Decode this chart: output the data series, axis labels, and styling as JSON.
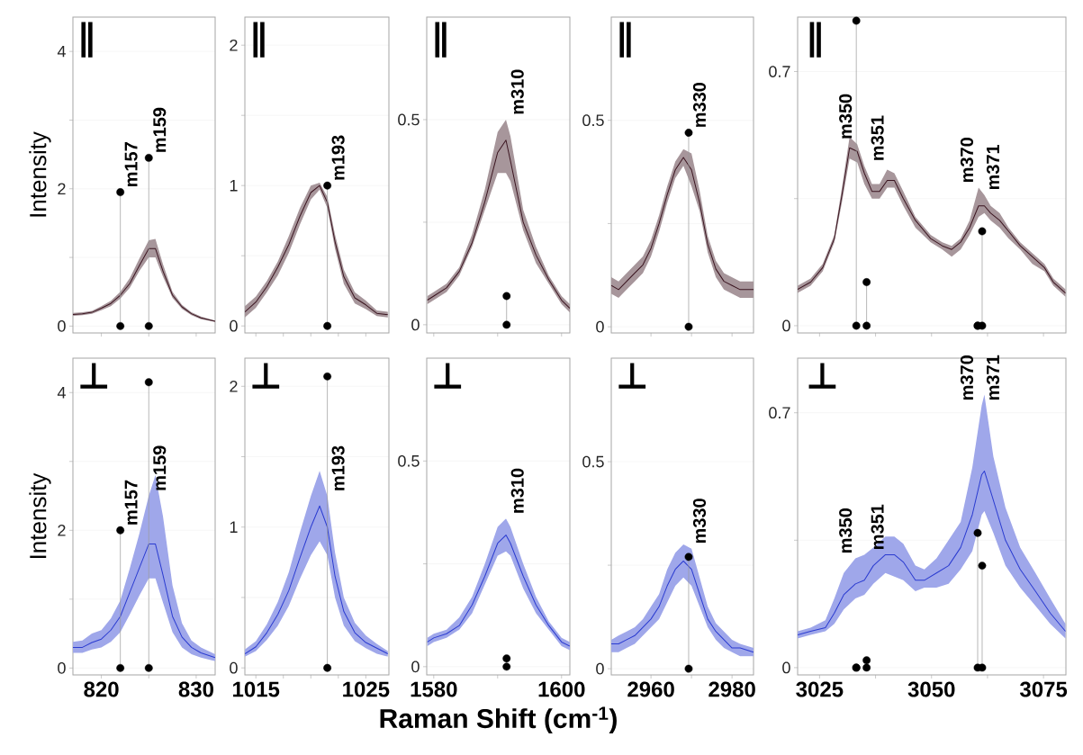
{
  "chart_data": [
    {
      "type": "line",
      "ylabel": "Intensity",
      "xlim": [
        817,
        832
      ],
      "ylim": [
        -0.1,
        4.5
      ],
      "xticks": [
        820,
        {
          "value": 825,
          "label": null
        },
        830
      ],
      "yticks": [
        0,
        {
          "value": 1,
          "label": null
        },
        2,
        {
          "value": 3,
          "label": null
        },
        4
      ],
      "grid": "y",
      "tick_labels": "y",
      "annotations": [
        "∥",
        "m157",
        "m159"
      ],
      "series": [
        {
          "type": "line",
          "color": "#3b1520",
          "x": [
            817,
            818,
            819,
            820,
            821,
            822,
            823,
            824,
            825,
            825.7,
            826.5,
            827.5,
            828.5,
            829.5,
            830.5,
            832
          ],
          "values": [
            0.17,
            0.18,
            0.2,
            0.26,
            0.33,
            0.45,
            0.62,
            0.88,
            1.13,
            1.13,
            0.8,
            0.45,
            0.28,
            0.18,
            0.12,
            0.07
          ],
          "lower": [
            0.15,
            0.16,
            0.18,
            0.23,
            0.29,
            0.4,
            0.56,
            0.8,
            1.0,
            1.0,
            0.72,
            0.41,
            0.25,
            0.16,
            0.1,
            0.06
          ],
          "upper": [
            0.19,
            0.2,
            0.22,
            0.29,
            0.37,
            0.5,
            0.7,
            0.98,
            1.25,
            1.27,
            0.9,
            0.5,
            0.31,
            0.2,
            0.14,
            0.08
          ]
        },
        {
          "type": "lollipop",
          "color": "#000000",
          "marker": "circle",
          "x": [
            822,
            825
          ],
          "values": [
            1.95,
            2.45
          ]
        },
        {
          "type": "scatter",
          "color": "#000000",
          "marker": "circle",
          "x": [
            822,
            825
          ],
          "values": [
            0,
            0
          ]
        }
      ]
    },
    {
      "type": "line",
      "xlim": [
        1014,
        1027.1
      ],
      "ylim": [
        -0.05,
        2.2
      ],
      "xticks": [
        1015,
        {
          "value": 1017.5,
          "label": null
        },
        {
          "value": 1020,
          "label": null
        },
        {
          "value": 1022.5,
          "label": null
        },
        1025
      ],
      "yticks": [
        0,
        {
          "value": 0.5,
          "label": null
        },
        1,
        {
          "value": 1.5,
          "label": null
        },
        2
      ],
      "grid": "y",
      "tick_labels": "y",
      "annotations": [
        "∥",
        "m193"
      ],
      "series": [
        {
          "type": "line",
          "color": "#3b1520",
          "x": [
            1014,
            1015,
            1016,
            1017,
            1018,
            1019,
            1020,
            1020.8,
            1021.5,
            1022.2,
            1023,
            1024,
            1025,
            1026,
            1027
          ],
          "values": [
            0.1,
            0.17,
            0.28,
            0.42,
            0.58,
            0.78,
            0.95,
            1.0,
            0.88,
            0.6,
            0.35,
            0.2,
            0.15,
            0.09,
            0.08
          ],
          "lower": [
            0.06,
            0.13,
            0.24,
            0.36,
            0.52,
            0.72,
            0.9,
            0.97,
            0.84,
            0.55,
            0.3,
            0.16,
            0.12,
            0.07,
            0.06
          ],
          "upper": [
            0.14,
            0.21,
            0.32,
            0.46,
            0.64,
            0.84,
            1.0,
            1.02,
            0.92,
            0.65,
            0.4,
            0.24,
            0.18,
            0.11,
            0.1
          ]
        },
        {
          "type": "lollipop",
          "color": "#000000",
          "marker": "circle",
          "x": [
            1021.5
          ],
          "values": [
            1.0
          ]
        },
        {
          "type": "scatter",
          "color": "#000000",
          "marker": "circle",
          "x": [
            1021.5
          ],
          "values": [
            0
          ]
        }
      ]
    },
    {
      "type": "line",
      "xlim": [
        1578.9,
        1601.3
      ],
      "ylim": [
        -0.02,
        0.75
      ],
      "xticks": [
        1580,
        {
          "value": 1590,
          "label": null
        },
        1600
      ],
      "yticks": [
        0,
        {
          "value": 0.25,
          "label": null
        },
        0.5
      ],
      "grid": "y",
      "tick_labels": "y",
      "annotations": [
        "∥",
        "m310"
      ],
      "series": [
        {
          "type": "line",
          "color": "#3b1520",
          "x": [
            1579,
            1580,
            1582,
            1584,
            1586,
            1588,
            1590,
            1591.3,
            1592,
            1594,
            1596,
            1598,
            1600,
            1601.3
          ],
          "values": [
            0.06,
            0.07,
            0.09,
            0.13,
            0.2,
            0.3,
            0.42,
            0.45,
            0.4,
            0.25,
            0.17,
            0.11,
            0.06,
            0.04
          ],
          "lower": [
            0.05,
            0.06,
            0.08,
            0.12,
            0.19,
            0.28,
            0.37,
            0.37,
            0.35,
            0.23,
            0.15,
            0.1,
            0.05,
            0.03
          ],
          "upper": [
            0.07,
            0.08,
            0.1,
            0.14,
            0.22,
            0.33,
            0.47,
            0.5,
            0.46,
            0.28,
            0.19,
            0.12,
            0.07,
            0.05
          ]
        },
        {
          "type": "lollipop",
          "color": "#000000",
          "marker": "circle",
          "x": [
            1591.4
          ],
          "values": [
            0.07
          ]
        },
        {
          "type": "scatter",
          "color": "#000000",
          "marker": "circle",
          "x": [
            1591.4
          ],
          "values": [
            0
          ]
        }
      ]
    },
    {
      "type": "line",
      "xlim": [
        2950.2,
        2985.3
      ],
      "ylim": [
        -0.015,
        0.75
      ],
      "xticks": [
        2960,
        {
          "value": 2970,
          "label": null
        },
        2980
      ],
      "yticks": [
        0,
        {
          "value": 0.25,
          "label": null
        },
        0.5
      ],
      "grid": "y",
      "tick_labels": "y",
      "annotations": [
        "∥",
        "m330"
      ],
      "series": [
        {
          "type": "line",
          "color": "#3b1520",
          "x": [
            2950.2,
            2952,
            2954,
            2956,
            2958,
            2960,
            2962,
            2964,
            2966,
            2968,
            2970,
            2972,
            2974,
            2976,
            2978,
            2980,
            2982,
            2985.3
          ],
          "values": [
            0.1,
            0.09,
            0.11,
            0.13,
            0.15,
            0.19,
            0.25,
            0.32,
            0.38,
            0.41,
            0.38,
            0.3,
            0.2,
            0.14,
            0.11,
            0.1,
            0.09,
            0.09
          ],
          "lower": [
            0.08,
            0.07,
            0.09,
            0.11,
            0.13,
            0.17,
            0.23,
            0.3,
            0.36,
            0.39,
            0.34,
            0.28,
            0.18,
            0.12,
            0.09,
            0.08,
            0.07,
            0.07
          ],
          "upper": [
            0.12,
            0.11,
            0.13,
            0.15,
            0.17,
            0.21,
            0.27,
            0.34,
            0.4,
            0.43,
            0.42,
            0.33,
            0.22,
            0.16,
            0.13,
            0.12,
            0.11,
            0.11
          ]
        },
        {
          "type": "lollipop",
          "color": "#000000",
          "marker": "circle",
          "x": [
            2969.3
          ],
          "values": [
            0.47
          ]
        },
        {
          "type": "scatter",
          "color": "#000000",
          "marker": "circle",
          "x": [
            2969.3
          ],
          "values": [
            0
          ]
        }
      ]
    },
    {
      "type": "line",
      "xlim": [
        3020.1,
        3080
      ],
      "ylim": [
        -0.02,
        0.85
      ],
      "xticks": [
        3025,
        {
          "value": 3037.5,
          "label": null
        },
        3050,
        {
          "value": 3062.5,
          "label": null
        },
        3075
      ],
      "yticks": [
        0,
        {
          "value": 0.35,
          "label": null
        },
        0.7
      ],
      "grid": "y",
      "tick_labels": "y",
      "annotations": [
        "∥",
        "m350",
        "m351",
        "m370",
        "m371"
      ],
      "series": [
        {
          "type": "line",
          "color": "#3b1520",
          "x": [
            3020.1,
            3023,
            3025.7,
            3028.3,
            3030,
            3031.7,
            3033.4,
            3035,
            3036.7,
            3038.4,
            3040.1,
            3041.7,
            3043.7,
            3046.4,
            3049.8,
            3052.4,
            3054.5,
            3056.5,
            3058.5,
            3060.5,
            3061.8,
            3063.2,
            3065.2,
            3067.2,
            3069.8,
            3072.5,
            3075.2,
            3077.2,
            3079.9
          ],
          "values": [
            0.1,
            0.12,
            0.16,
            0.24,
            0.36,
            0.49,
            0.48,
            0.42,
            0.37,
            0.37,
            0.4,
            0.4,
            0.35,
            0.29,
            0.24,
            0.22,
            0.21,
            0.23,
            0.27,
            0.33,
            0.33,
            0.31,
            0.29,
            0.26,
            0.22,
            0.19,
            0.16,
            0.12,
            0.09
          ],
          "lower": [
            0.09,
            0.11,
            0.15,
            0.23,
            0.34,
            0.46,
            0.45,
            0.39,
            0.35,
            0.35,
            0.38,
            0.38,
            0.33,
            0.27,
            0.23,
            0.21,
            0.19,
            0.21,
            0.25,
            0.3,
            0.31,
            0.29,
            0.27,
            0.24,
            0.21,
            0.17,
            0.15,
            0.11,
            0.08
          ],
          "upper": [
            0.11,
            0.13,
            0.17,
            0.25,
            0.38,
            0.52,
            0.5,
            0.44,
            0.39,
            0.39,
            0.43,
            0.42,
            0.37,
            0.3,
            0.25,
            0.23,
            0.22,
            0.24,
            0.29,
            0.38,
            0.36,
            0.33,
            0.31,
            0.27,
            0.23,
            0.2,
            0.17,
            0.13,
            0.1
          ]
        },
        {
          "type": "lollipop",
          "color": "#000000",
          "marker": "circle",
          "x": [
            3033.2,
            3035.5,
            3060.3,
            3061.3
          ],
          "values": [
            0.84,
            0.12,
            0,
            0.26
          ]
        },
        {
          "type": "scatter",
          "color": "#000000",
          "marker": "circle",
          "x": [
            3033.2,
            3035.5,
            3060.3,
            3061.3
          ],
          "values": [
            0,
            0,
            0,
            0
          ]
        }
      ]
    },
    {
      "type": "line",
      "ylabel": "Intensity",
      "xlim": [
        817,
        832
      ],
      "ylim": [
        -0.1,
        4.5
      ],
      "xticks": [
        820,
        {
          "value": 825,
          "label": null
        },
        830
      ],
      "yticks": [
        0,
        {
          "value": 1,
          "label": null
        },
        2,
        {
          "value": 3,
          "label": null
        },
        4
      ],
      "grid": "y",
      "annotations": [
        "⊥",
        "m157",
        "m159"
      ],
      "series": [
        {
          "type": "line",
          "color": "#2a3bd0",
          "x": [
            817,
            818,
            819,
            820,
            821,
            822,
            823,
            824,
            825,
            825.7,
            826.5,
            827.5,
            828.5,
            829.5,
            830.5,
            832
          ],
          "values": [
            0.3,
            0.3,
            0.37,
            0.42,
            0.55,
            0.75,
            1.1,
            1.45,
            1.8,
            1.8,
            1.35,
            0.75,
            0.45,
            0.3,
            0.22,
            0.15
          ],
          "lower": [
            0.22,
            0.22,
            0.27,
            0.3,
            0.38,
            0.52,
            0.78,
            1.05,
            1.3,
            1.3,
            0.95,
            0.52,
            0.3,
            0.2,
            0.15,
            0.1
          ],
          "upper": [
            0.38,
            0.4,
            0.5,
            0.55,
            0.72,
            0.98,
            1.45,
            1.95,
            2.5,
            2.8,
            2.2,
            1.2,
            0.65,
            0.4,
            0.3,
            0.2
          ]
        },
        {
          "type": "lollipop",
          "color": "#000000",
          "marker": "circle",
          "x": [
            822,
            825
          ],
          "values": [
            2.0,
            4.15
          ]
        },
        {
          "type": "scatter",
          "color": "#000000",
          "marker": "circle",
          "x": [
            822,
            825
          ],
          "values": [
            0,
            0
          ]
        }
      ]
    },
    {
      "type": "line",
      "xlim": [
        1014,
        1027.1
      ],
      "ylim": [
        -0.05,
        2.2
      ],
      "xticks": [
        1015,
        {
          "value": 1017.5,
          "label": null
        },
        {
          "value": 1020,
          "label": null
        },
        {
          "value": 1022.5,
          "label": null
        },
        1025
      ],
      "yticks": [
        0,
        {
          "value": 0.5,
          "label": null
        },
        1,
        {
          "value": 1.5,
          "label": null
        },
        2
      ],
      "grid": "y",
      "annotations": [
        "⊥",
        "m193"
      ],
      "series": [
        {
          "type": "line",
          "color": "#2a3bd0",
          "x": [
            1014,
            1015,
            1016,
            1017,
            1018,
            1019,
            1020,
            1020.8,
            1021.5,
            1022.2,
            1023,
            1024,
            1025,
            1026,
            1027
          ],
          "values": [
            0.1,
            0.15,
            0.25,
            0.38,
            0.55,
            0.78,
            1.0,
            1.15,
            1.0,
            0.65,
            0.4,
            0.25,
            0.18,
            0.14,
            0.1
          ],
          "lower": [
            0.08,
            0.12,
            0.2,
            0.3,
            0.44,
            0.63,
            0.8,
            0.9,
            0.8,
            0.5,
            0.3,
            0.19,
            0.14,
            0.1,
            0.08
          ],
          "upper": [
            0.13,
            0.19,
            0.31,
            0.47,
            0.68,
            0.96,
            1.22,
            1.4,
            1.22,
            0.82,
            0.5,
            0.32,
            0.23,
            0.17,
            0.12
          ]
        },
        {
          "type": "lollipop",
          "color": "#000000",
          "marker": "circle",
          "x": [
            1021.5
          ],
          "values": [
            2.07
          ]
        },
        {
          "type": "scatter",
          "color": "#000000",
          "marker": "circle",
          "x": [
            1021.5
          ],
          "values": [
            0
          ]
        }
      ]
    },
    {
      "type": "line",
      "xlabel": "Raman Shift (cm$^{-1}$)",
      "xlim": [
        1578.9,
        1601.3
      ],
      "ylim": [
        -0.02,
        0.75
      ],
      "xticks": [
        1580,
        {
          "value": 1590,
          "label": null
        },
        1600
      ],
      "yticks": [
        0,
        {
          "value": 0.25,
          "label": null
        },
        0.5
      ],
      "grid": "y",
      "annotations": [
        "⊥",
        "m310"
      ],
      "series": [
        {
          "type": "line",
          "color": "#2a3bd0",
          "x": [
            1579,
            1580,
            1582,
            1584,
            1586,
            1588,
            1590,
            1591.3,
            1592,
            1594,
            1596,
            1598,
            1600,
            1601.3
          ],
          "values": [
            0.06,
            0.07,
            0.08,
            0.1,
            0.15,
            0.22,
            0.3,
            0.32,
            0.3,
            0.22,
            0.15,
            0.1,
            0.06,
            0.05
          ],
          "lower": [
            0.05,
            0.06,
            0.07,
            0.09,
            0.13,
            0.2,
            0.27,
            0.28,
            0.27,
            0.19,
            0.13,
            0.09,
            0.05,
            0.04
          ],
          "upper": [
            0.07,
            0.08,
            0.09,
            0.12,
            0.17,
            0.25,
            0.34,
            0.36,
            0.34,
            0.25,
            0.17,
            0.11,
            0.07,
            0.06
          ]
        },
        {
          "type": "lollipop",
          "color": "#000000",
          "marker": "circle",
          "x": [
            1591.4
          ],
          "values": [
            0.02
          ]
        },
        {
          "type": "scatter",
          "color": "#000000",
          "marker": "circle",
          "x": [
            1591.4
          ],
          "values": [
            0
          ]
        }
      ]
    },
    {
      "type": "line",
      "xlim": [
        2950.2,
        2985.3
      ],
      "ylim": [
        -0.015,
        0.75
      ],
      "xticks": [
        2960,
        {
          "value": 2970,
          "label": null
        },
        2980
      ],
      "yticks": [
        0,
        {
          "value": 0.25,
          "label": null
        },
        0.5
      ],
      "grid": "y",
      "annotations": [
        "⊥",
        "m330"
      ],
      "series": [
        {
          "type": "line",
          "color": "#2a3bd0",
          "x": [
            2950.2,
            2952,
            2954,
            2956,
            2958,
            2960,
            2962,
            2964,
            2966,
            2968,
            2970,
            2972,
            2974,
            2976,
            2978,
            2980,
            2982,
            2985.3
          ],
          "values": [
            0.06,
            0.06,
            0.07,
            0.08,
            0.1,
            0.12,
            0.15,
            0.2,
            0.24,
            0.26,
            0.24,
            0.18,
            0.12,
            0.09,
            0.07,
            0.05,
            0.05,
            0.04
          ],
          "lower": [
            0.04,
            0.04,
            0.05,
            0.06,
            0.08,
            0.1,
            0.12,
            0.16,
            0.2,
            0.22,
            0.2,
            0.15,
            0.1,
            0.07,
            0.05,
            0.04,
            0.03,
            0.03
          ],
          "upper": [
            0.07,
            0.08,
            0.09,
            0.1,
            0.12,
            0.15,
            0.18,
            0.24,
            0.28,
            0.3,
            0.29,
            0.22,
            0.15,
            0.11,
            0.09,
            0.07,
            0.06,
            0.05
          ]
        },
        {
          "type": "lollipop",
          "color": "#000000",
          "marker": "circle",
          "x": [
            2969.3
          ],
          "values": [
            0.27
          ]
        },
        {
          "type": "scatter",
          "color": "#000000",
          "marker": "circle",
          "x": [
            2969.3
          ],
          "values": [
            0
          ]
        }
      ]
    },
    {
      "type": "line",
      "xlim": [
        3020.1,
        3080
      ],
      "ylim": [
        -0.02,
        0.85
      ],
      "xticks": [
        3025,
        {
          "value": 3037.5,
          "label": null
        },
        3050,
        {
          "value": 3062.5,
          "label": null
        },
        3075
      ],
      "yticks": [
        0,
        {
          "value": 0.35,
          "label": null
        },
        0.7
      ],
      "grid": "y",
      "annotations": [
        "⊥",
        "m350",
        "m351",
        "m370",
        "m371"
      ],
      "series": [
        {
          "type": "line",
          "color": "#2a3bd0",
          "x": [
            3020.1,
            3023,
            3026.3,
            3028.3,
            3030.4,
            3033,
            3035,
            3037,
            3039.7,
            3041.7,
            3043.7,
            3046.4,
            3048.4,
            3051.1,
            3053.8,
            3056.5,
            3059.1,
            3061.2,
            3061.8,
            3063.8,
            3066.5,
            3069.8,
            3073.2,
            3076.5,
            3079.9
          ],
          "values": [
            0.09,
            0.1,
            0.11,
            0.15,
            0.2,
            0.23,
            0.24,
            0.28,
            0.31,
            0.31,
            0.29,
            0.24,
            0.24,
            0.26,
            0.28,
            0.33,
            0.42,
            0.53,
            0.54,
            0.46,
            0.35,
            0.27,
            0.21,
            0.15,
            0.1
          ],
          "lower": [
            0.08,
            0.09,
            0.1,
            0.12,
            0.16,
            0.19,
            0.2,
            0.23,
            0.26,
            0.25,
            0.24,
            0.21,
            0.22,
            0.22,
            0.23,
            0.27,
            0.32,
            0.42,
            0.43,
            0.37,
            0.28,
            0.22,
            0.17,
            0.12,
            0.08
          ],
          "upper": [
            0.1,
            0.11,
            0.13,
            0.19,
            0.26,
            0.3,
            0.31,
            0.33,
            0.36,
            0.36,
            0.34,
            0.28,
            0.27,
            0.3,
            0.35,
            0.4,
            0.55,
            0.72,
            0.75,
            0.58,
            0.44,
            0.33,
            0.26,
            0.19,
            0.12
          ]
        },
        {
          "type": "lollipop",
          "color": "#000000",
          "marker": "circle",
          "x": [
            3033.2,
            3035.5,
            3060.3,
            3061.3
          ],
          "values": [
            0,
            0.02,
            0.37,
            0.28
          ]
        },
        {
          "type": "scatter",
          "color": "#000000",
          "marker": "circle",
          "x": [
            3033.2,
            3035.5,
            3060.3,
            3061.3
          ],
          "values": [
            0,
            0,
            0,
            0
          ]
        }
      ]
    }
  ]
}
